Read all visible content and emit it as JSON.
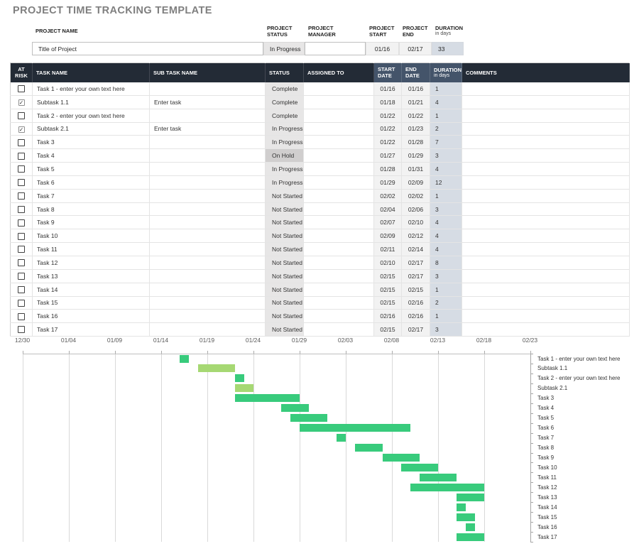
{
  "page": {
    "title": "PROJECT TIME TRACKING TEMPLATE"
  },
  "colors": {
    "title_color": "#7F7F7F",
    "header_dark": "#232B36",
    "header_slate": "#44546A",
    "status_bg": "#E7E6E6",
    "onhold_bg": "#D0CECE",
    "date_bg": "#F2F2F2",
    "duration_bg": "#D6DCE4",
    "bar_task": "#38CB7C",
    "bar_subtask": "#A6D873",
    "grid_line": "#D9D9D9"
  },
  "icons": {
    "check_glyph": "✓"
  },
  "project_info": {
    "name": {
      "label": "PROJECT NAME",
      "value": "Title of Project"
    },
    "status": {
      "label": "PROJECT STATUS",
      "value": "In Progress"
    },
    "manager": {
      "label": "PROJECT MANAGER",
      "value": ""
    },
    "start": {
      "label": "PROJECT START",
      "value": "01/16"
    },
    "end": {
      "label": "PROJECT END",
      "value": "02/17"
    },
    "duration": {
      "label": "DURATION",
      "sublabel": "in days",
      "value": "33"
    }
  },
  "task_table": {
    "headers": {
      "at_risk": "AT RISK",
      "task_name": "TASK NAME",
      "sub_task_name": "SUB TASK NAME",
      "status": "STATUS",
      "assigned_to": "ASSIGNED TO",
      "start_date": "START DATE",
      "end_date": "END DATE",
      "duration": "DURATION",
      "duration_sub": "in days",
      "comments": "COMMENTS"
    },
    "statuses": {
      "on_hold": "On Hold"
    },
    "rows": [
      {
        "at_risk": false,
        "task_name": "Task 1 - enter your own text here",
        "sub_task_name": "",
        "status": "Complete",
        "assigned_to": "",
        "start_date": "01/16",
        "end_date": "01/16",
        "duration": "1",
        "comments": ""
      },
      {
        "at_risk": true,
        "task_name": "Subtask 1.1",
        "sub_task_name": "Enter task",
        "status": "Complete",
        "assigned_to": "",
        "start_date": "01/18",
        "end_date": "01/21",
        "duration": "4",
        "comments": ""
      },
      {
        "at_risk": false,
        "task_name": "Task 2 - enter your own text here",
        "sub_task_name": "",
        "status": "Complete",
        "assigned_to": "",
        "start_date": "01/22",
        "end_date": "01/22",
        "duration": "1",
        "comments": ""
      },
      {
        "at_risk": true,
        "task_name": "Subtask 2.1",
        "sub_task_name": "Enter task",
        "status": "In Progress",
        "assigned_to": "",
        "start_date": "01/22",
        "end_date": "01/23",
        "duration": "2",
        "comments": ""
      },
      {
        "at_risk": false,
        "task_name": "Task 3",
        "sub_task_name": "",
        "status": "In Progress",
        "assigned_to": "",
        "start_date": "01/22",
        "end_date": "01/28",
        "duration": "7",
        "comments": ""
      },
      {
        "at_risk": false,
        "task_name": "Task 4",
        "sub_task_name": "",
        "status": "On Hold",
        "assigned_to": "",
        "start_date": "01/27",
        "end_date": "01/29",
        "duration": "3",
        "comments": ""
      },
      {
        "at_risk": false,
        "task_name": "Task 5",
        "sub_task_name": "",
        "status": "In Progress",
        "assigned_to": "",
        "start_date": "01/28",
        "end_date": "01/31",
        "duration": "4",
        "comments": ""
      },
      {
        "at_risk": false,
        "task_name": "Task 6",
        "sub_task_name": "",
        "status": "In Progress",
        "assigned_to": "",
        "start_date": "01/29",
        "end_date": "02/09",
        "duration": "12",
        "comments": ""
      },
      {
        "at_risk": false,
        "task_name": "Task 7",
        "sub_task_name": "",
        "status": "Not Started",
        "assigned_to": "",
        "start_date": "02/02",
        "end_date": "02/02",
        "duration": "1",
        "comments": ""
      },
      {
        "at_risk": false,
        "task_name": "Task 8",
        "sub_task_name": "",
        "status": "Not Started",
        "assigned_to": "",
        "start_date": "02/04",
        "end_date": "02/06",
        "duration": "3",
        "comments": ""
      },
      {
        "at_risk": false,
        "task_name": "Task 9",
        "sub_task_name": "",
        "status": "Not Started",
        "assigned_to": "",
        "start_date": "02/07",
        "end_date": "02/10",
        "duration": "4",
        "comments": ""
      },
      {
        "at_risk": false,
        "task_name": "Task 10",
        "sub_task_name": "",
        "status": "Not Started",
        "assigned_to": "",
        "start_date": "02/09",
        "end_date": "02/12",
        "duration": "4",
        "comments": ""
      },
      {
        "at_risk": false,
        "task_name": "Task 11",
        "sub_task_name": "",
        "status": "Not Started",
        "assigned_to": "",
        "start_date": "02/11",
        "end_date": "02/14",
        "duration": "4",
        "comments": ""
      },
      {
        "at_risk": false,
        "task_name": "Task 12",
        "sub_task_name": "",
        "status": "Not Started",
        "assigned_to": "",
        "start_date": "02/10",
        "end_date": "02/17",
        "duration": "8",
        "comments": ""
      },
      {
        "at_risk": false,
        "task_name": "Task 13",
        "sub_task_name": "",
        "status": "Not Started",
        "assigned_to": "",
        "start_date": "02/15",
        "end_date": "02/17",
        "duration": "3",
        "comments": ""
      },
      {
        "at_risk": false,
        "task_name": "Task 14",
        "sub_task_name": "",
        "status": "Not Started",
        "assigned_to": "",
        "start_date": "02/15",
        "end_date": "02/15",
        "duration": "1",
        "comments": ""
      },
      {
        "at_risk": false,
        "task_name": "Task 15",
        "sub_task_name": "",
        "status": "Not Started",
        "assigned_to": "",
        "start_date": "02/15",
        "end_date": "02/16",
        "duration": "2",
        "comments": ""
      },
      {
        "at_risk": false,
        "task_name": "Task 16",
        "sub_task_name": "",
        "status": "Not Started",
        "assigned_to": "",
        "start_date": "02/16",
        "end_date": "02/16",
        "duration": "1",
        "comments": ""
      },
      {
        "at_risk": false,
        "task_name": "Task 17",
        "sub_task_name": "",
        "status": "Not Started",
        "assigned_to": "",
        "start_date": "02/15",
        "end_date": "02/17",
        "duration": "3",
        "comments": ""
      }
    ]
  },
  "chart_data": {
    "type": "bar",
    "subtype": "gantt",
    "x_ticks": [
      "12/30",
      "01/04",
      "01/09",
      "01/14",
      "01/19",
      "01/24",
      "01/29",
      "02/03",
      "02/08",
      "02/13",
      "02/18",
      "02/23"
    ],
    "x_tick_interval_days": 5,
    "total_days": 55,
    "axis_start_date": "12/30",
    "grid": true,
    "legend": "none",
    "category_axis_position": "right",
    "tasks": [
      {
        "label": "Task 1 - enter your own text here",
        "start": "01/16",
        "end": "01/16",
        "start_day": 17,
        "duration_days": 1,
        "kind": "task"
      },
      {
        "label": "Subtask 1.1",
        "start": "01/18",
        "end": "01/21",
        "start_day": 19,
        "duration_days": 4,
        "kind": "subtask"
      },
      {
        "label": "Task 2 - enter your own text here",
        "start": "01/22",
        "end": "01/22",
        "start_day": 23,
        "duration_days": 1,
        "kind": "task"
      },
      {
        "label": "Subtask 2.1",
        "start": "01/22",
        "end": "01/23",
        "start_day": 23,
        "duration_days": 2,
        "kind": "subtask"
      },
      {
        "label": "Task 3",
        "start": "01/22",
        "end": "01/28",
        "start_day": 23,
        "duration_days": 7,
        "kind": "task"
      },
      {
        "label": "Task 4",
        "start": "01/27",
        "end": "01/29",
        "start_day": 28,
        "duration_days": 3,
        "kind": "task"
      },
      {
        "label": "Task 5",
        "start": "01/28",
        "end": "01/31",
        "start_day": 29,
        "duration_days": 4,
        "kind": "task"
      },
      {
        "label": "Task 6",
        "start": "01/29",
        "end": "02/09",
        "start_day": 30,
        "duration_days": 12,
        "kind": "task"
      },
      {
        "label": "Task 7",
        "start": "02/02",
        "end": "02/02",
        "start_day": 34,
        "duration_days": 1,
        "kind": "task"
      },
      {
        "label": "Task 8",
        "start": "02/04",
        "end": "02/06",
        "start_day": 36,
        "duration_days": 3,
        "kind": "task"
      },
      {
        "label": "Task 9",
        "start": "02/07",
        "end": "02/10",
        "start_day": 39,
        "duration_days": 4,
        "kind": "task"
      },
      {
        "label": "Task 10",
        "start": "02/09",
        "end": "02/12",
        "start_day": 41,
        "duration_days": 4,
        "kind": "task"
      },
      {
        "label": "Task 11",
        "start": "02/11",
        "end": "02/14",
        "start_day": 43,
        "duration_days": 4,
        "kind": "task"
      },
      {
        "label": "Task 12",
        "start": "02/10",
        "end": "02/17",
        "start_day": 42,
        "duration_days": 8,
        "kind": "task"
      },
      {
        "label": "Task 13",
        "start": "02/15",
        "end": "02/17",
        "start_day": 47,
        "duration_days": 3,
        "kind": "task"
      },
      {
        "label": "Task 14",
        "start": "02/15",
        "end": "02/15",
        "start_day": 47,
        "duration_days": 1,
        "kind": "task"
      },
      {
        "label": "Task 15",
        "start": "02/15",
        "end": "02/16",
        "start_day": 47,
        "duration_days": 2,
        "kind": "task"
      },
      {
        "label": "Task 16",
        "start": "02/16",
        "end": "02/16",
        "start_day": 48,
        "duration_days": 1,
        "kind": "task"
      },
      {
        "label": "Task 17",
        "start": "02/15",
        "end": "02/17",
        "start_day": 47,
        "duration_days": 3,
        "kind": "task"
      }
    ]
  }
}
